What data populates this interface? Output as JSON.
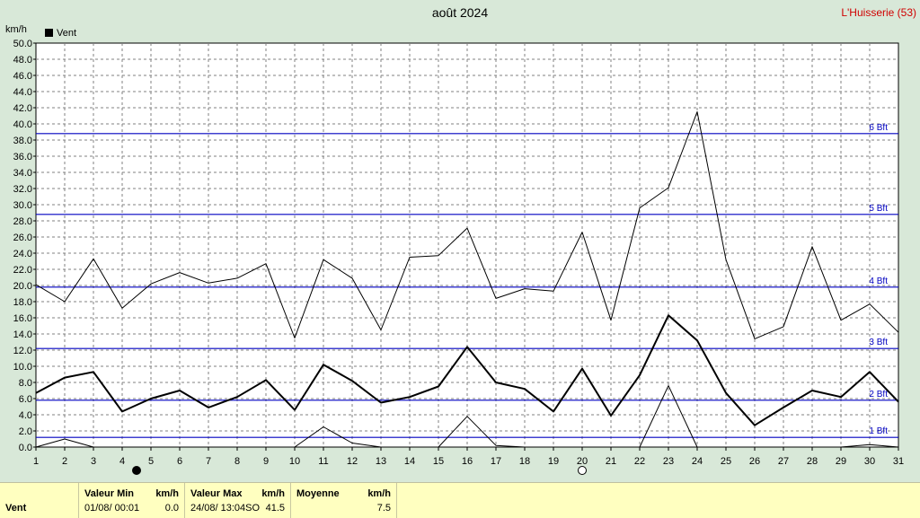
{
  "header": {
    "title": "août 2024",
    "station": "L'Huisserie (53)",
    "unit": "km/h",
    "legend_label": "Vent"
  },
  "chart_data": {
    "type": "line",
    "title": "août 2024",
    "ylabel": "km/h",
    "ylim": [
      0,
      50
    ],
    "ytick_step": 2,
    "x": [
      1,
      2,
      3,
      4,
      5,
      6,
      7,
      8,
      9,
      10,
      11,
      12,
      13,
      14,
      15,
      16,
      17,
      18,
      19,
      20,
      21,
      22,
      23,
      24,
      25,
      26,
      27,
      28,
      29,
      30,
      31
    ],
    "xlim": [
      1,
      31
    ],
    "grid": true,
    "legend_placement": "top-left",
    "series": [
      {
        "name": "",
        "role": "max",
        "color": "#000000",
        "values": [
          20.1,
          18.0,
          23.3,
          17.2,
          20.2,
          21.6,
          20.3,
          20.9,
          22.7,
          13.5,
          23.2,
          20.9,
          14.5,
          23.5,
          23.7,
          27.1,
          18.4,
          19.6,
          19.3,
          26.6,
          15.7,
          29.6,
          32.1,
          41.5,
          23.2,
          13.4,
          14.9,
          24.8,
          15.7,
          17.7,
          14.2
        ]
      },
      {
        "name": "Vent",
        "role": "mean",
        "color": "#000000",
        "values": [
          6.7,
          8.6,
          9.3,
          4.4,
          6.0,
          7.0,
          4.9,
          6.2,
          8.3,
          4.6,
          10.2,
          8.2,
          5.5,
          6.2,
          7.5,
          12.4,
          8.0,
          7.2,
          4.4,
          9.7,
          3.9,
          8.9,
          16.3,
          13.2,
          6.7,
          2.7,
          4.9,
          7.0,
          6.2,
          9.3,
          5.6
        ]
      },
      {
        "name": "",
        "role": "min",
        "color": "#000000",
        "values": [
          0.0,
          1.0,
          0.0,
          0.0,
          0.0,
          0.0,
          0.0,
          0.0,
          0.0,
          0.0,
          2.5,
          0.5,
          0.0,
          0.0,
          0.0,
          3.8,
          0.2,
          0.0,
          0.0,
          0.0,
          0.0,
          0.0,
          7.6,
          0.0,
          0.0,
          0.0,
          0.0,
          0.0,
          0.0,
          0.3,
          0.0
        ]
      }
    ],
    "beaufort": [
      {
        "label": "1 Bft",
        "value": 1.2
      },
      {
        "label": "2 Bft",
        "value": 5.8
      },
      {
        "label": "3 Bft",
        "value": 12.2
      },
      {
        "label": "4 Bft",
        "value": 19.8
      },
      {
        "label": "5 Bft",
        "value": 28.8
      },
      {
        "label": "6 Bft",
        "value": 38.8
      }
    ],
    "beaufort_color": "#0000c0",
    "moon_phases": [
      {
        "day": 4.5,
        "phase": "new-moon"
      },
      {
        "day": 20,
        "phase": "full-moon"
      }
    ]
  },
  "footer": {
    "row_label": "Vent",
    "min": {
      "header": "Valeur Min",
      "unit": "km/h",
      "date": "01/08/  00:01",
      "value": "0.0"
    },
    "max": {
      "header": "Valeur Max",
      "unit": "km/h",
      "date": "24/08/  13:04SO",
      "value": "41.5"
    },
    "avg": {
      "header": "Moyenne",
      "unit": "km/h",
      "value": "7.5"
    }
  }
}
